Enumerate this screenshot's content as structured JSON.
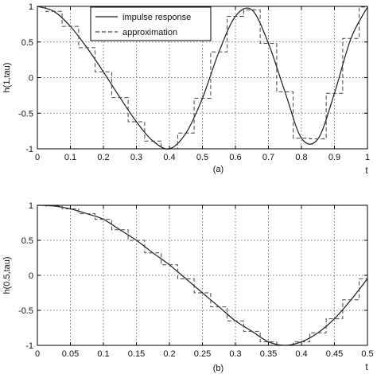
{
  "chart_data": [
    {
      "type": "line",
      "caption": "(a)",
      "xlabel": "t",
      "ylabel": "h(1,tau)",
      "xlim": [
        0,
        1
      ],
      "ylim": [
        -1,
        1
      ],
      "xticks": [
        "0",
        "0.1",
        "0.2",
        "0.3",
        "0.4",
        "0.5",
        "0.6",
        "0.7",
        "0.8",
        "0.9",
        "1"
      ],
      "yticks": [
        "1",
        "0.5",
        "0",
        "-0.5",
        "-1"
      ],
      "grid": true,
      "legend_position": "top",
      "series": [
        {
          "name": "impulse response",
          "style": "solid",
          "color": "#1a1a1a",
          "x": [
            0.0,
            0.05,
            0.1,
            0.15,
            0.2,
            0.25,
            0.3,
            0.35,
            0.4,
            0.45,
            0.5,
            0.55,
            0.6,
            0.65,
            0.7,
            0.75,
            0.8,
            0.85,
            0.9,
            0.95,
            1.0
          ],
          "y": [
            1.0,
            0.93,
            0.72,
            0.42,
            0.08,
            -0.28,
            -0.62,
            -0.89,
            -1.0,
            -0.78,
            -0.29,
            0.36,
            0.86,
            0.95,
            0.48,
            -0.2,
            -0.85,
            -0.86,
            -0.22,
            0.55,
            0.99
          ]
        },
        {
          "name": "approximation",
          "style": "dashed staircase",
          "color": "#444444",
          "x": [
            0.0,
            0.05,
            0.1,
            0.15,
            0.2,
            0.25,
            0.3,
            0.35,
            0.4,
            0.45,
            0.5,
            0.55,
            0.6,
            0.65,
            0.7,
            0.75,
            0.8,
            0.85,
            0.9,
            0.95,
            1.0
          ],
          "y": [
            1.0,
            0.93,
            0.72,
            0.42,
            0.08,
            -0.28,
            -0.62,
            -0.89,
            -1.0,
            -0.78,
            -0.29,
            0.36,
            0.86,
            0.95,
            0.48,
            -0.2,
            -0.85,
            -0.86,
            -0.22,
            0.55,
            0.99
          ]
        }
      ]
    },
    {
      "type": "line",
      "caption": "(b)",
      "xlabel": "t",
      "ylabel": "h(0.5,tau)",
      "xlim": [
        0,
        0.5
      ],
      "ylim": [
        -1,
        1
      ],
      "xticks": [
        "0",
        "0.05",
        "0.1",
        "0.15",
        "0.2",
        "0.25",
        "0.3",
        "0.35",
        "0.4",
        "0.45",
        "0.5"
      ],
      "yticks": [
        "1",
        "0.5",
        "0",
        "-0.5",
        "-1"
      ],
      "grid": true,
      "series": [
        {
          "name": "impulse response",
          "style": "solid",
          "color": "#1a1a1a",
          "x": [
            0.0,
            0.025,
            0.05,
            0.075,
            0.1,
            0.125,
            0.15,
            0.175,
            0.2,
            0.225,
            0.25,
            0.275,
            0.3,
            0.325,
            0.35,
            0.375,
            0.4,
            0.425,
            0.45,
            0.475,
            0.5
          ],
          "y": [
            1.0,
            0.99,
            0.95,
            0.88,
            0.8,
            0.65,
            0.5,
            0.32,
            0.15,
            -0.05,
            -0.25,
            -0.45,
            -0.65,
            -0.8,
            -0.95,
            -1.0,
            -0.95,
            -0.82,
            -0.62,
            -0.35,
            -0.05
          ]
        },
        {
          "name": "approximation",
          "style": "dashed staircase",
          "color": "#444444",
          "x": [
            0.0,
            0.025,
            0.05,
            0.075,
            0.1,
            0.125,
            0.15,
            0.175,
            0.2,
            0.225,
            0.25,
            0.275,
            0.3,
            0.325,
            0.35,
            0.375,
            0.4,
            0.425,
            0.45,
            0.475,
            0.5
          ],
          "y": [
            1.0,
            0.99,
            0.95,
            0.88,
            0.8,
            0.65,
            0.5,
            0.32,
            0.15,
            -0.05,
            -0.25,
            -0.45,
            -0.65,
            -0.8,
            -0.95,
            -1.0,
            -0.95,
            -0.82,
            -0.62,
            -0.35,
            -0.05
          ]
        }
      ]
    }
  ]
}
